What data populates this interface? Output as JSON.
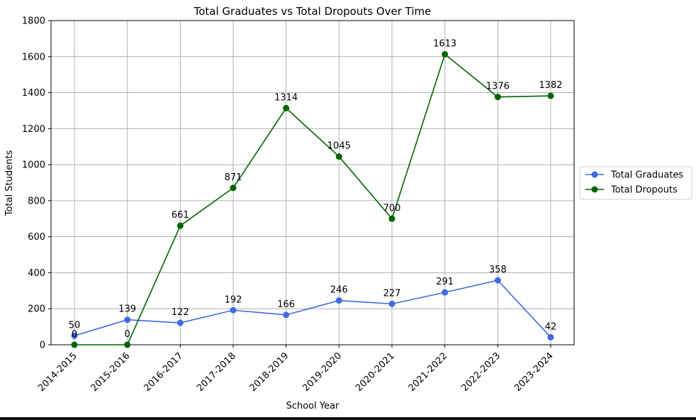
{
  "chart_data": {
    "type": "line",
    "title": "Total Graduates vs Total Dropouts Over Time",
    "xlabel": "School Year",
    "ylabel": "Total Students",
    "categories": [
      "2014-2015",
      "2015-2016",
      "2016-2017",
      "2017-2018",
      "2018-2019",
      "2019-2020",
      "2020-2021",
      "2021-2022",
      "2022-2023",
      "2023-2024"
    ],
    "ylim": [
      0,
      1800
    ],
    "yticks": [
      0,
      200,
      400,
      600,
      800,
      1000,
      1200,
      1400,
      1600,
      1800
    ],
    "grid": true,
    "legend_position": "right, outside plot",
    "series": [
      {
        "name": "Total Graduates",
        "color": "#4169e1",
        "marker": "circle",
        "values": [
          50,
          139,
          122,
          192,
          166,
          246,
          227,
          291,
          358,
          42
        ]
      },
      {
        "name": "Total Dropouts",
        "color": "#006400",
        "marker": "circle",
        "values": [
          0,
          0,
          661,
          871,
          1314,
          1045,
          700,
          1613,
          1376,
          1382
        ]
      }
    ]
  }
}
